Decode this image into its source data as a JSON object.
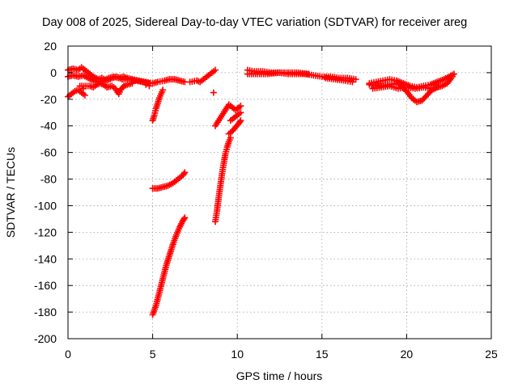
{
  "chart_data": {
    "type": "scatter",
    "title": "Day 008 of 2025, Sidereal Day-to-day VTEC variation (SDTVAR) for receiver areg",
    "xlabel": "GPS time / hours",
    "ylabel": "SDTVAR / TECUs",
    "xlim": [
      0,
      25
    ],
    "ylim": [
      -200,
      20
    ],
    "x_ticks": [
      0,
      5,
      10,
      15,
      20,
      25
    ],
    "x_tick_labels": [
      "0",
      "5",
      "10",
      "15",
      "20",
      "25"
    ],
    "y_ticks": [
      -200,
      -180,
      -160,
      -140,
      -120,
      -100,
      -80,
      -60,
      -40,
      -20,
      0,
      20
    ],
    "y_tick_labels": [
      "-200",
      "-180",
      "-160",
      "-140",
      "-120",
      "-100",
      "-80",
      "-60",
      "-40",
      "-20",
      "0",
      "20"
    ],
    "grid": true,
    "marker": "+",
    "series": [
      {
        "name": "SDTVAR",
        "color": "#ff0000",
        "points": [
          [
            0,
            2
          ],
          [
            0.3,
            3
          ],
          [
            0.6,
            2
          ],
          [
            0.8,
            4
          ],
          [
            1.0,
            2
          ],
          [
            1.2,
            0
          ],
          [
            1.5,
            -3
          ],
          [
            1.8,
            -5
          ],
          [
            2.0,
            -4
          ],
          [
            2.3,
            -6
          ],
          [
            2.6,
            -4
          ],
          [
            2.9,
            -3
          ],
          [
            3.2,
            -5
          ],
          [
            3.5,
            -4
          ],
          [
            3.8,
            -5
          ],
          [
            4.2,
            -6
          ],
          [
            4.6,
            -7
          ],
          [
            5.0,
            -8
          ],
          [
            5.3,
            -7
          ],
          [
            5.7,
            -6
          ],
          [
            6.0,
            -5
          ],
          [
            6.3,
            -5
          ],
          [
            6.6,
            -6
          ],
          [
            6.9,
            -7
          ],
          [
            0,
            -3
          ],
          [
            0.3,
            -2
          ],
          [
            0.6,
            -3
          ],
          [
            0.9,
            -2
          ],
          [
            1.2,
            -4
          ],
          [
            1.5,
            -6
          ],
          [
            1.8,
            -7
          ],
          [
            2.1,
            -6
          ],
          [
            2.4,
            -4
          ],
          [
            2.7,
            -3
          ],
          [
            3.0,
            -4
          ],
          [
            3.3,
            -3
          ],
          [
            3.6,
            -5
          ],
          [
            4.0,
            -6
          ],
          [
            4.4,
            -7
          ],
          [
            4.8,
            -8
          ],
          [
            0,
            -18
          ],
          [
            0.2,
            -16
          ],
          [
            0.4,
            -14
          ],
          [
            0.6,
            -13
          ],
          [
            0.8,
            -15
          ],
          [
            1.0,
            -17
          ],
          [
            0.9,
            -12
          ],
          [
            0.7,
            -10
          ],
          [
            1.3,
            -10
          ],
          [
            1.5,
            -11
          ],
          [
            1.7,
            -9
          ],
          [
            1.9,
            -8
          ],
          [
            2.1,
            -9
          ],
          [
            2.3,
            -11
          ],
          [
            2.6,
            -10
          ],
          [
            2.8,
            -12
          ],
          [
            3.0,
            -16
          ],
          [
            3.1,
            -13
          ],
          [
            3.3,
            -10
          ],
          [
            3.5,
            -9
          ],
          [
            3.8,
            -8
          ],
          [
            4.8,
            -10
          ],
          [
            4.6,
            -9
          ],
          [
            5.0,
            -36
          ],
          [
            5.1,
            -32
          ],
          [
            5.2,
            -27
          ],
          [
            5.3,
            -23
          ],
          [
            5.4,
            -19
          ],
          [
            5.5,
            -16
          ],
          [
            5.6,
            -13
          ],
          [
            5.0,
            -87
          ],
          [
            5.3,
            -87
          ],
          [
            5.6,
            -86
          ],
          [
            5.9,
            -85
          ],
          [
            6.2,
            -83
          ],
          [
            6.5,
            -80
          ],
          [
            6.8,
            -77
          ],
          [
            6.9,
            -75
          ],
          [
            5.0,
            -182
          ],
          [
            5.2,
            -175
          ],
          [
            5.4,
            -165
          ],
          [
            5.6,
            -155
          ],
          [
            5.8,
            -145
          ],
          [
            6.0,
            -137
          ],
          [
            6.2,
            -129
          ],
          [
            6.4,
            -122
          ],
          [
            6.6,
            -116
          ],
          [
            6.8,
            -111
          ],
          [
            6.9,
            -109
          ],
          [
            7.2,
            -7
          ],
          [
            7.6,
            -6
          ],
          [
            7.8,
            -7
          ],
          [
            8.0,
            -5
          ],
          [
            8.2,
            -3
          ],
          [
            8.4,
            -1
          ],
          [
            8.6,
            1
          ],
          [
            8.7,
            2
          ],
          [
            8.6,
            -15
          ],
          [
            8.7,
            -40
          ],
          [
            8.9,
            -36
          ],
          [
            9.1,
            -32
          ],
          [
            9.3,
            -28
          ],
          [
            9.5,
            -24
          ],
          [
            9.7,
            -26
          ],
          [
            9.9,
            -28
          ],
          [
            10.1,
            -26
          ],
          [
            10.2,
            -25
          ],
          [
            9.6,
            -36
          ],
          [
            9.8,
            -34
          ],
          [
            10.0,
            -32
          ],
          [
            10.2,
            -30
          ],
          [
            9.5,
            -46
          ],
          [
            9.7,
            -44
          ],
          [
            9.9,
            -41
          ],
          [
            10.1,
            -38
          ],
          [
            10.2,
            -36
          ],
          [
            8.7,
            -112
          ],
          [
            8.8,
            -104
          ],
          [
            8.9,
            -94
          ],
          [
            9.0,
            -85
          ],
          [
            9.1,
            -76
          ],
          [
            9.2,
            -68
          ],
          [
            9.3,
            -61
          ],
          [
            9.4,
            -56
          ],
          [
            9.5,
            -52
          ],
          [
            9.6,
            -49
          ],
          [
            10.6,
            2
          ],
          [
            11.0,
            1
          ],
          [
            11.5,
            1
          ],
          [
            12.0,
            0
          ],
          [
            12.5,
            0
          ],
          [
            13.0,
            -1
          ],
          [
            13.5,
            -1
          ],
          [
            14.0,
            -1
          ],
          [
            14.5,
            -2
          ],
          [
            15.0,
            -3
          ],
          [
            15.5,
            -3
          ],
          [
            16.0,
            -4
          ],
          [
            16.5,
            -4
          ],
          [
            17.0,
            -5
          ],
          [
            10.6,
            -1
          ],
          [
            11.2,
            -1
          ],
          [
            11.8,
            -1
          ],
          [
            12.4,
            0
          ],
          [
            13.0,
            0
          ],
          [
            13.6,
            0
          ],
          [
            14.2,
            -1
          ],
          [
            15.2,
            -4
          ],
          [
            15.8,
            -5
          ],
          [
            16.4,
            -6
          ],
          [
            16.8,
            -7
          ],
          [
            17.8,
            -8
          ],
          [
            18.2,
            -7
          ],
          [
            18.6,
            -6
          ],
          [
            19.0,
            -5
          ],
          [
            19.4,
            -6
          ],
          [
            19.8,
            -8
          ],
          [
            20.2,
            -10
          ],
          [
            20.6,
            -11
          ],
          [
            21.0,
            -10
          ],
          [
            21.4,
            -9
          ],
          [
            21.8,
            -7
          ],
          [
            22.2,
            -5
          ],
          [
            22.5,
            -3
          ],
          [
            22.8,
            -1
          ],
          [
            17.8,
            -9
          ],
          [
            18.4,
            -10
          ],
          [
            19.0,
            -9
          ],
          [
            19.5,
            -8
          ],
          [
            20.0,
            -14
          ],
          [
            20.3,
            -19
          ],
          [
            20.6,
            -22
          ],
          [
            20.9,
            -21
          ],
          [
            21.2,
            -17
          ],
          [
            21.5,
            -13
          ],
          [
            21.8,
            -11
          ],
          [
            22.1,
            -10
          ],
          [
            22.4,
            -8
          ],
          [
            22.7,
            -3
          ],
          [
            18.0,
            -12
          ],
          [
            18.5,
            -11
          ],
          [
            19.0,
            -10
          ],
          [
            19.5,
            -12
          ],
          [
            20.0,
            -11
          ],
          [
            20.5,
            -12
          ],
          [
            21.0,
            -11
          ],
          [
            21.5,
            -12
          ],
          [
            22.0,
            -10
          ]
        ]
      }
    ]
  }
}
